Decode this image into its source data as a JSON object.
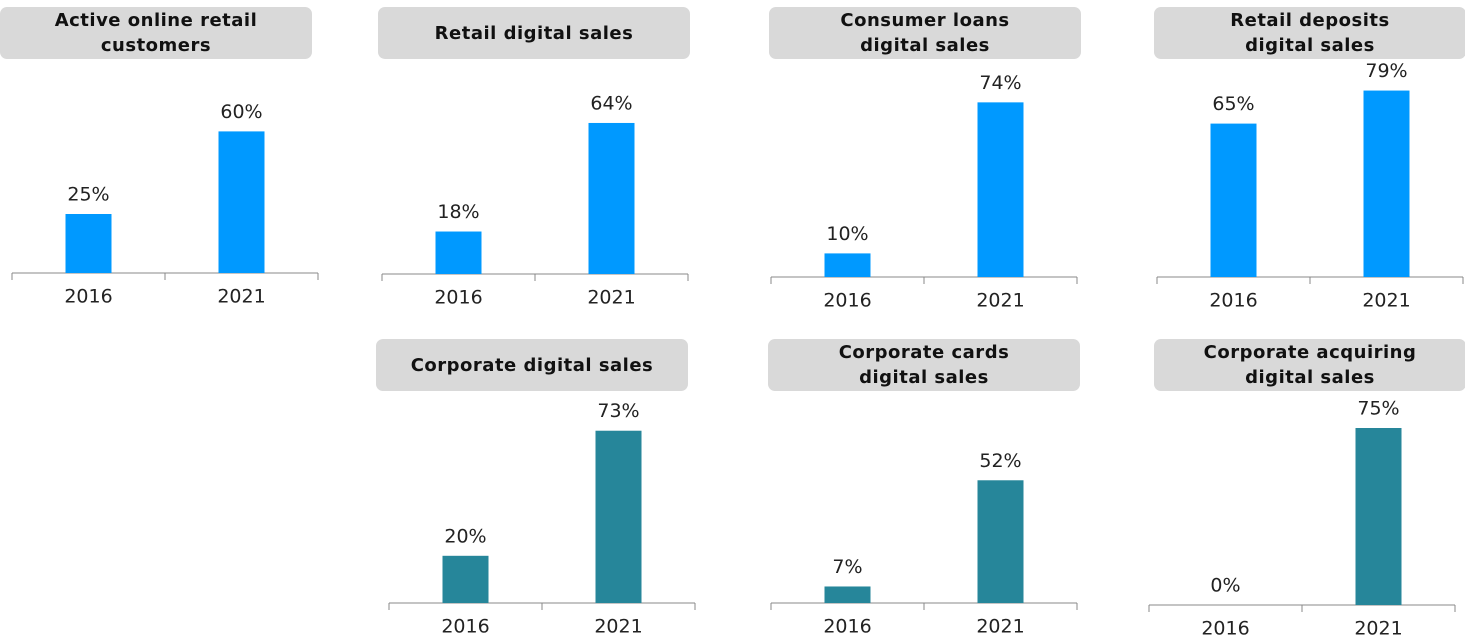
{
  "chart_data": [
    {
      "type": "bar",
      "title": "Active online retail\ncustomers",
      "categories": [
        "2016",
        "2021"
      ],
      "values": [
        25,
        60
      ],
      "value_labels": [
        "25%",
        "60%"
      ],
      "color": "#0099ff"
    },
    {
      "type": "bar",
      "title": "Retail digital sales",
      "categories": [
        "2016",
        "2021"
      ],
      "values": [
        18,
        64
      ],
      "value_labels": [
        "18%",
        "64%"
      ],
      "color": "#0099ff"
    },
    {
      "type": "bar",
      "title": "Consumer loans\ndigital sales",
      "categories": [
        "2016",
        "2021"
      ],
      "values": [
        10,
        74
      ],
      "value_labels": [
        "10%",
        "74%"
      ],
      "color": "#0099ff"
    },
    {
      "type": "bar",
      "title": "Retail deposits\ndigital sales",
      "categories": [
        "2016",
        "2021"
      ],
      "values": [
        65,
        79
      ],
      "value_labels": [
        "65%",
        "79%"
      ],
      "color": "#0099ff"
    },
    {
      "type": "bar",
      "title": "Corporate digital sales",
      "categories": [
        "2016",
        "2021"
      ],
      "values": [
        20,
        73
      ],
      "value_labels": [
        "20%",
        "73%"
      ],
      "color": "#26869a"
    },
    {
      "type": "bar",
      "title": "Corporate cards\ndigital sales",
      "categories": [
        "2016",
        "2021"
      ],
      "values": [
        7,
        52
      ],
      "value_labels": [
        "7%",
        "52%"
      ],
      "color": "#26869a"
    },
    {
      "type": "bar",
      "title": "Corporate acquiring\ndigital sales",
      "categories": [
        "2016",
        "2021"
      ],
      "values": [
        0,
        75
      ],
      "value_labels": [
        "0%",
        "75%"
      ],
      "color": "#26869a"
    }
  ]
}
